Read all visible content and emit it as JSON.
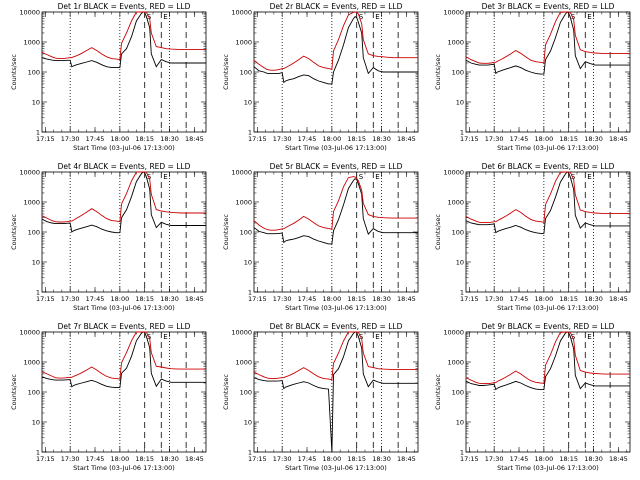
{
  "chart_data": {
    "type": "line",
    "layout": "3x3 grid",
    "y_scale": "log",
    "ylim": [
      1,
      10000
    ],
    "xlim": [
      "17:13:00",
      "18:52:00"
    ],
    "y_tick_labels": [
      "1",
      "10",
      "100",
      "1000",
      "10000"
    ],
    "x_tick_labels": [
      "17:15",
      "17:30",
      "17:45",
      "18:00",
      "18:15",
      "18:30",
      "18:45"
    ],
    "ylabel": "Counts/sec",
    "xlabel": "Start Time (03-Jul-06 17:13:00)",
    "vertical_markers": {
      "dotted": [
        "17:30",
        "18:00",
        "18:30"
      ],
      "dashed": [
        "18:15",
        "18:25",
        "18:40"
      ],
      "dashed_labels": [
        "S",
        "E"
      ]
    },
    "x_minutes": [
      0,
      3,
      6,
      8,
      10,
      13,
      15,
      17,
      18,
      19,
      21,
      24,
      27,
      30,
      33,
      36,
      39,
      42,
      45,
      47,
      48,
      51,
      54,
      57,
      60,
      61,
      62,
      63,
      65,
      66,
      69,
      72,
      75,
      78,
      81,
      84,
      87,
      90,
      93,
      96,
      99
    ],
    "panels": [
      {
        "title": "Det 1r BLACK = Events, RED = LLD",
        "series": [
          {
            "name": "BLACK",
            "color": "#000000",
            "values": [
              300,
              270,
              250,
              240,
              240,
              240,
              245,
              245,
              150,
              160,
              175,
              195,
              215,
              240,
              210,
              175,
              150,
              140,
              140,
              140,
              400,
              600,
              1500,
              5000,
              9000,
              10000,
              9600,
              7000,
              3000,
              400,
              150,
              260,
              220,
              200,
              200,
              200,
              200,
              200,
              200,
              200,
              200
            ]
          },
          {
            "name": "RED",
            "color": "#cc0000",
            "values": [
              450,
              380,
              320,
              290,
              280,
              280,
              290,
              300,
              300,
              320,
              350,
              420,
              520,
              650,
              520,
              400,
              320,
              280,
              270,
              260,
              900,
              2000,
              5000,
              10000,
              10000,
              10000,
              10000,
              9800,
              6000,
              2000,
              700,
              650,
              600,
              580,
              570,
              560,
              560,
              560,
              560,
              560,
              560
            ]
          }
        ]
      },
      {
        "title": "Det 2r BLACK = Events, RED = LLD",
        "series": [
          {
            "name": "BLACK",
            "color": "#000000",
            "values": [
              150,
              110,
              100,
              90,
              90,
              90,
              90,
              95,
              45,
              50,
              55,
              60,
              70,
              80,
              75,
              60,
              50,
              45,
              40,
              40,
              100,
              250,
              800,
              3000,
              6000,
              7000,
              6500,
              4500,
              2000,
              300,
              90,
              140,
              110,
              100,
              100,
              100,
              100,
              100,
              100,
              100,
              100
            ]
          },
          {
            "name": "RED",
            "color": "#cc0000",
            "values": [
              250,
              180,
              140,
              120,
              115,
              115,
              120,
              130,
              130,
              140,
              160,
              200,
              260,
              340,
              280,
              210,
              160,
              140,
              130,
              125,
              500,
              1200,
              3500,
              8000,
              9800,
              10000,
              9800,
              8500,
              4000,
              1200,
              400,
              350,
              330,
              320,
              310,
              300,
              300,
              300,
              300,
              300,
              300
            ]
          }
        ]
      },
      {
        "title": "Det 3r BLACK = Events, RED = LLD",
        "series": [
          {
            "name": "BLACK",
            "color": "#000000",
            "values": [
              250,
              200,
              180,
              170,
              170,
              170,
              175,
              180,
              90,
              100,
              110,
              125,
              140,
              160,
              140,
              115,
              100,
              90,
              85,
              85,
              260,
              500,
              1400,
              4500,
              8500,
              10000,
              9200,
              6500,
              2500,
              350,
              130,
              220,
              190,
              170,
              170,
              170,
              170,
              170,
              170,
              170,
              170
            ]
          },
          {
            "name": "RED",
            "color": "#cc0000",
            "values": [
              320,
              260,
              220,
              200,
              195,
              195,
              200,
              210,
              210,
              230,
              260,
              320,
              400,
              520,
              420,
              320,
              250,
              220,
              210,
              200,
              800,
              1800,
              4800,
              9800,
              10000,
              10000,
              10000,
              9700,
              5500,
              1700,
              550,
              480,
              450,
              430,
              420,
              410,
              410,
              410,
              410,
              410,
              410
            ]
          }
        ]
      },
      {
        "title": "Det 4r BLACK = Events, RED = LLD",
        "series": [
          {
            "name": "BLACK",
            "color": "#000000",
            "values": [
              270,
              220,
              200,
              190,
              190,
              190,
              195,
              200,
              100,
              110,
              120,
              135,
              150,
              170,
              150,
              125,
              110,
              100,
              95,
              95,
              300,
              550,
              1500,
              4800,
              8800,
              10000,
              9400,
              6800,
              2700,
              380,
              140,
              210,
              180,
              165,
              165,
              165,
              165,
              165,
              165,
              165,
              165
            ]
          },
          {
            "name": "RED",
            "color": "#cc0000",
            "values": [
              350,
              290,
              240,
              220,
              215,
              215,
              220,
              230,
              230,
              250,
              290,
              360,
              460,
              600,
              480,
              360,
              280,
              240,
              230,
              220,
              850,
              1900,
              5000,
              9900,
              10000,
              10000,
              10000,
              9800,
              5800,
              1800,
              560,
              500,
              470,
              450,
              440,
              430,
              430,
              430,
              430,
              430,
              430
            ]
          }
        ]
      },
      {
        "title": "Det 5r BLACK = Events, RED = LLD",
        "series": [
          {
            "name": "BLACK",
            "color": "#000000",
            "values": [
              140,
              105,
              95,
              88,
              88,
              88,
              90,
              92,
              45,
              50,
              54,
              58,
              65,
              75,
              70,
              58,
              50,
              45,
              40,
              40,
              110,
              260,
              800,
              2800,
              5200,
              6000,
              5600,
              4000,
              1800,
              280,
              85,
              130,
              105,
              95,
              95,
              95,
              95,
              95,
              95,
              95,
              95
            ]
          },
          {
            "name": "RED",
            "color": "#cc0000",
            "values": [
              240,
              170,
              135,
              120,
              115,
              115,
              120,
              128,
              128,
              140,
              160,
              195,
              250,
              330,
              270,
              205,
              160,
              140,
              130,
              125,
              480,
              1100,
              3200,
              6500,
              7000,
              6800,
              6200,
              5000,
              2500,
              900,
              380,
              330,
              310,
              300,
              295,
              290,
              290,
              290,
              290,
              290,
              290
            ]
          }
        ]
      },
      {
        "title": "Det 6r BLACK = Events, RED = LLD",
        "series": [
          {
            "name": "BLACK",
            "color": "#000000",
            "values": [
              240,
              200,
              185,
              175,
              175,
              175,
              180,
              185,
              95,
              105,
              115,
              130,
              145,
              165,
              145,
              120,
              105,
              95,
              90,
              90,
              280,
              520,
              1450,
              4600,
              8600,
              10000,
              9300,
              6600,
              2600,
              360,
              135,
              200,
              175,
              160,
              160,
              160,
              160,
              160,
              160,
              160,
              160
            ]
          },
          {
            "name": "RED",
            "color": "#cc0000",
            "values": [
              330,
              270,
              230,
              210,
              205,
              205,
              210,
              220,
              220,
              240,
              275,
              340,
              430,
              560,
              450,
              340,
              265,
              230,
              220,
              210,
              820,
              1850,
              4900,
              9800,
              10000,
              10000,
              10000,
              9750,
              5600,
              1750,
              540,
              480,
              450,
              430,
              420,
              410,
              410,
              410,
              410,
              410,
              410
            ]
          }
        ]
      },
      {
        "title": "Det 7r BLACK = Events, RED = LLD",
        "series": [
          {
            "name": "BLACK",
            "color": "#000000",
            "values": [
              320,
              280,
              260,
              250,
              250,
              250,
              255,
              260,
              150,
              165,
              180,
              200,
              220,
              245,
              215,
              180,
              155,
              145,
              140,
              140,
              420,
              620,
              1550,
              5100,
              9100,
              10000,
              9700,
              7100,
              3000,
              420,
              155,
              270,
              230,
              210,
              210,
              210,
              210,
              210,
              210,
              210,
              210
            ]
          },
          {
            "name": "RED",
            "color": "#cc0000",
            "values": [
              480,
              400,
              340,
              300,
              290,
              290,
              300,
              310,
              310,
              330,
              365,
              440,
              540,
              680,
              540,
              415,
              330,
              290,
              280,
              270,
              930,
              2050,
              5100,
              10000,
              10000,
              10000,
              10000,
              9850,
              6100,
              2050,
              720,
              680,
              630,
              600,
              590,
              580,
              580,
              580,
              580,
              580,
              580
            ]
          }
        ]
      },
      {
        "title": "Det 8r BLACK = Events, RED = LLD",
        "series": [
          {
            "name": "BLACK",
            "color": "#000000",
            "values": [
              300,
              260,
              240,
              230,
              230,
              230,
              235,
              240,
              130,
              145,
              160,
              180,
              200,
              220,
              200,
              165,
              140,
              130,
              125,
              1,
              380,
              600,
              1500,
              5000,
              9000,
              10000,
              9600,
              7000,
              2900,
              400,
              150,
              250,
              215,
              195,
              195,
              195,
              195,
              195,
              195,
              195,
              195
            ]
          },
          {
            "name": "RED",
            "color": "#cc0000",
            "values": [
              460,
              380,
              320,
              290,
              280,
              280,
              290,
              300,
              300,
              320,
              350,
              420,
              520,
              650,
              520,
              400,
              320,
              280,
              270,
              260,
              900,
              2000,
              5000,
              10000,
              10000,
              10000,
              10000,
              9800,
              6000,
              2000,
              700,
              650,
              600,
              580,
              570,
              560,
              560,
              560,
              560,
              560,
              560
            ]
          }
        ]
      },
      {
        "title": "Det 9r BLACK = Events, RED = LLD",
        "series": [
          {
            "name": "BLACK",
            "color": "#000000",
            "values": [
              230,
              190,
              175,
              165,
              165,
              170,
              175,
              180,
              120,
              135,
              150,
              170,
              195,
              225,
              200,
              165,
              140,
              125,
              120,
              120,
              320,
              600,
              1600,
              5000,
              9200,
              10000,
              9500,
              6900,
              2700,
              360,
              130,
              200,
              175,
              160,
              160,
              160,
              160,
              160,
              160,
              160,
              160
            ]
          },
          {
            "name": "RED",
            "color": "#cc0000",
            "values": [
              300,
              250,
              210,
              195,
              190,
              190,
              195,
              205,
              205,
              225,
              255,
              315,
              390,
              500,
              400,
              305,
              240,
              210,
              200,
              195,
              780,
              1750,
              4700,
              9700,
              10000,
              10000,
              10000,
              9650,
              5500,
              1700,
              520,
              460,
              430,
              415,
              405,
              395,
              395,
              395,
              395,
              395,
              395
            ]
          }
        ]
      }
    ]
  }
}
